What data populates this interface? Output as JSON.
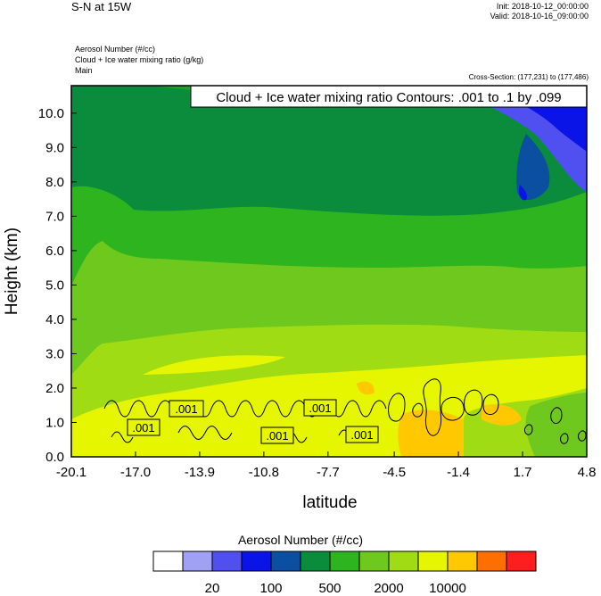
{
  "header": {
    "title": "S-N at 15W",
    "init": "Init: 2018-10-12_00:00:00",
    "valid": "Valid: 2018-10-16_09:00:00",
    "fields": [
      "Aerosol Number   (#/cc)",
      "Cloud + Ice water mixing ratio   (g/kg)",
      "Main"
    ],
    "cross_section": "Cross-Section: (177,231) to (177,486)"
  },
  "chart_data": {
    "type": "contour",
    "xlabel": "latitude",
    "ylabel": "Height (km)",
    "x_ticks": [
      "-20.1",
      "-17.0",
      "-13.9",
      "-10.8",
      "-7.7",
      "-4.5",
      "-1.4",
      "1.7",
      "4.8"
    ],
    "y_ticks": [
      "0.0",
      "1.0",
      "2.0",
      "3.0",
      "4.0",
      "5.0",
      "6.0",
      "7.0",
      "8.0",
      "9.0",
      "10.0"
    ],
    "xlim": [
      -20.1,
      4.8
    ],
    "ylim": [
      0.0,
      10.8
    ],
    "contour_label": "Cloud + Ice water mixing ratio Contours: .001 to .1 by .099",
    "contour_value_labels": [
      ".001",
      ".001",
      ".001",
      ".001",
      ".001"
    ],
    "colorbar": {
      "title": "Aerosol Number  (#/cc)",
      "colors": [
        "#ffffff",
        "#a0a0f5",
        "#5050f0",
        "#0a14e6",
        "#0a4fa0",
        "#0a8c3c",
        "#2eb41e",
        "#6ec81e",
        "#a0dc14",
        "#e6f500",
        "#ffc800",
        "#ff6e00",
        "#ff1e1e"
      ],
      "tick_labels": [
        "20",
        "100",
        "500",
        "2000",
        "10000"
      ]
    }
  }
}
